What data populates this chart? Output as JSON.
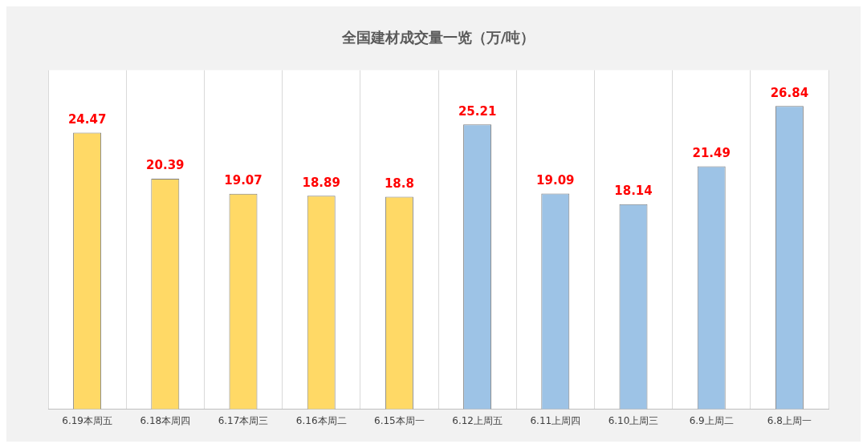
{
  "chart_data": {
    "type": "bar",
    "title": "全国建材成交量一览（万/吨）",
    "categories": [
      "6.19本周五",
      "6.18本周四",
      "6.17本周三",
      "6.16本周二",
      "6.15本周一",
      "6.12上周五",
      "6.11上周四",
      "6.10上周三",
      "6.9上周二",
      "6.8上周一"
    ],
    "values": [
      24.47,
      20.39,
      19.07,
      18.89,
      18.8,
      25.21,
      19.09,
      18.14,
      21.49,
      26.84
    ],
    "colors": [
      "#ffd966",
      "#ffd966",
      "#ffd966",
      "#ffd966",
      "#ffd966",
      "#9dc3e6",
      "#9dc3e6",
      "#9dc3e6",
      "#9dc3e6",
      "#9dc3e6"
    ],
    "data_labels": true,
    "grid": "x",
    "legend": false
  }
}
